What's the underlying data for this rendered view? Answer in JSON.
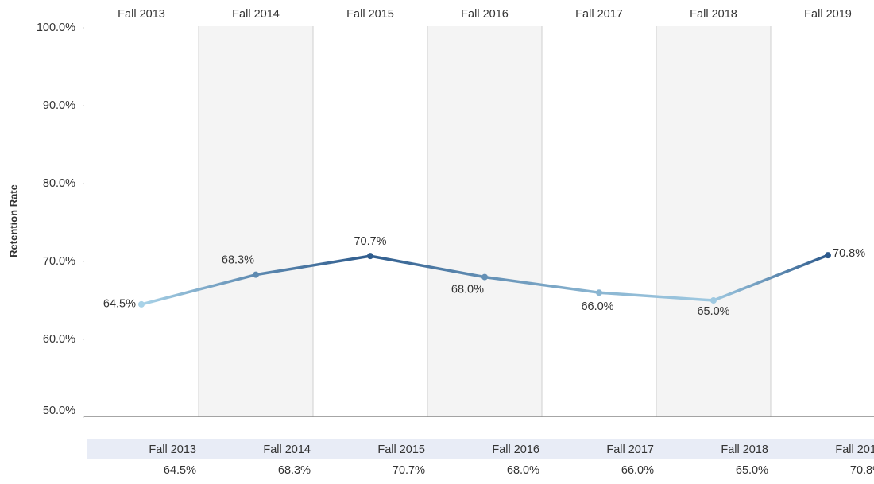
{
  "chart_data": {
    "type": "line",
    "y_label": "Retention Rate",
    "categories": [
      "Fall 2013",
      "Fall 2014",
      "Fall 2015",
      "Fall 2016",
      "Fall 2017",
      "Fall 2018",
      "Fall 2019"
    ],
    "values": [
      64.5,
      68.3,
      70.7,
      68.0,
      66.0,
      65.0,
      70.8
    ],
    "value_labels": [
      "64.5%",
      "68.3%",
      "70.7%",
      "68.0%",
      "66.0%",
      "65.0%",
      "70.8%"
    ],
    "color_range": [
      "#a9d3e8",
      "#2d5a8c"
    ],
    "ylim": [
      50,
      100
    ],
    "yticks": [
      {
        "value": 50,
        "label": "50.0%"
      },
      {
        "value": 60,
        "label": "60.0%"
      },
      {
        "value": 70,
        "label": "70.0%"
      },
      {
        "value": 80,
        "label": "80.0%"
      },
      {
        "value": 90,
        "label": "90.0%"
      },
      {
        "value": 100,
        "label": "100.0%"
      }
    ],
    "banding": true
  }
}
